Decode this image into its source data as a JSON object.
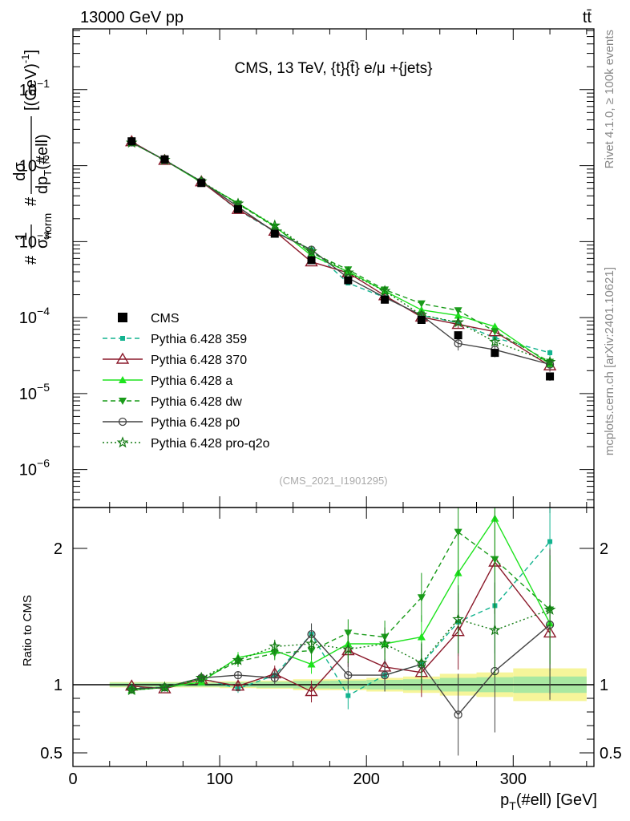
{
  "header": {
    "left_label": "13000 GeV pp",
    "right_label": "tt̄",
    "title": "CMS, 13 TeV, {t}{t̄} e/μ +{jets}",
    "analysis_id": "(CMS_2021_I1901295)",
    "side_label_top": "Rivet 4.1.0, ≥ 100k events",
    "side_label_bottom": "mcplots.cern.ch [arXiv:2401.10621]"
  },
  "axes": {
    "main_ylabel": "#1/σnorm #dσ/dpT(#ell) [(GeV)⁻¹]",
    "main_ylabel_parts": {
      "prefix": "#",
      "one": "1",
      "sigma": "σ",
      "norm": "norm",
      "hash2": "#",
      "dsigma": "dσ",
      "dpt_d": "d",
      "dpt_p": "p",
      "dpt_T": "T",
      "dpt_arg": "(#ell)",
      "unit_open": "[(GeV)",
      "unit_exp": "-1",
      "unit_close": "]"
    },
    "ratio_ylabel": "Ratio to CMS",
    "xlabel_main": "p",
    "xlabel_sub": "T",
    "xlabel_rest": "(#ell) [GeV]",
    "x_ticks": [
      "0",
      "100",
      "200",
      "300"
    ],
    "main_y_ticks": [
      {
        "base": "10",
        "exp": "−1"
      },
      {
        "base": "10",
        "exp": "−2"
      },
      {
        "base": "10",
        "exp": "−3"
      },
      {
        "base": "10",
        "exp": "−4"
      },
      {
        "base": "10",
        "exp": "−5"
      },
      {
        "base": "10",
        "exp": "−6"
      }
    ],
    "ratio_y_ticks": [
      "2",
      "1",
      "0.5"
    ]
  },
  "colors": {
    "CMS": "#000000",
    "p359": "#13b38f",
    "p370": "#8b1a2b",
    "pa": "#1ee31e",
    "pdw": "#1a9b1a",
    "pp0": "#444444",
    "pq2o": "#127a12",
    "band_outer": "#f6f59a",
    "band_inner": "#a9e8a1"
  },
  "chart_data": {
    "type": "line",
    "x_range": [
      0,
      355
    ],
    "main_y_range_log10": [
      -6.5,
      -0.2
    ],
    "ratio_y_range": [
      0.4,
      2.3
    ],
    "x": [
      40,
      62.5,
      87.5,
      112.5,
      137.5,
      162.5,
      187.5,
      212.5,
      237.5,
      262.5,
      287.5,
      325
    ],
    "x_err": [
      15,
      12.5,
      12.5,
      12.5,
      12.5,
      12.5,
      12.5,
      12.5,
      12.5,
      12.5,
      12.5,
      25
    ],
    "data": {
      "name": "CMS",
      "values": [
        0.0209,
        0.0121,
        0.0059,
        0.00268,
        0.00127,
        0.00057,
        0.00031,
        0.000172,
        9.32e-05,
        5.85e-05,
        3.43e-05,
        1.68e-05
      ],
      "rel_err": [
        0.02,
        0.02,
        0.02,
        0.025,
        0.03,
        0.04,
        0.04,
        0.05,
        0.06,
        0.08,
        0.09,
        0.12
      ]
    },
    "series": [
      {
        "name": "Pythia 6.428 359",
        "key": "p359",
        "marker": "square-small",
        "dash": "dashed",
        "ratio": [
          0.98,
          0.98,
          1.05,
          0.97,
          1.07,
          1.37,
          0.92,
          1.07,
          1.15,
          1.46,
          1.58,
          2.05
        ],
        "ratio_err": [
          0.01,
          0.01,
          0.02,
          0.03,
          0.05,
          0.07,
          0.1,
          0.12,
          0.15,
          0.25,
          0.35,
          0.4
        ]
      },
      {
        "name": "Pythia 6.428 370",
        "key": "p370",
        "marker": "triangle-open",
        "dash": "solid",
        "ratio": [
          0.99,
          0.97,
          1.04,
          0.99,
          1.08,
          0.95,
          1.25,
          1.13,
          1.09,
          1.39,
          1.9,
          1.38
        ],
        "ratio_err": [
          0.01,
          0.01,
          0.02,
          0.04,
          0.06,
          0.08,
          0.12,
          0.14,
          0.18,
          0.28,
          0.38,
          0.45
        ]
      },
      {
        "name": "Pythia 6.428 a",
        "key": "pa",
        "marker": "triangle-up",
        "dash": "solid",
        "ratio": [
          0.96,
          0.98,
          1.02,
          1.2,
          1.25,
          1.15,
          1.3,
          1.3,
          1.35,
          1.82,
          2.22,
          1.45
        ],
        "ratio_err": [
          0.01,
          0.01,
          0.02,
          0.04,
          0.06,
          0.07,
          0.1,
          0.12,
          0.16,
          0.3,
          0.4,
          0.45
        ]
      },
      {
        "name": "Pythia 6.428 dw",
        "key": "pdw",
        "marker": "triangle-down",
        "dash": "dashed",
        "ratio": [
          0.96,
          0.98,
          1.04,
          1.17,
          1.23,
          1.25,
          1.38,
          1.35,
          1.64,
          2.12,
          1.92,
          1.55
        ],
        "ratio_err": [
          0.01,
          0.01,
          0.02,
          0.04,
          0.05,
          0.07,
          0.1,
          0.12,
          0.18,
          0.32,
          0.4,
          0.45
        ]
      },
      {
        "name": "Pythia 6.428 p0",
        "key": "pp0",
        "marker": "circle-open",
        "dash": "solid",
        "ratio": [
          0.97,
          0.98,
          1.05,
          1.07,
          1.05,
          1.37,
          1.07,
          1.07,
          1.15,
          0.78,
          1.1,
          1.44
        ],
        "ratio_err": [
          0.01,
          0.01,
          0.02,
          0.03,
          0.05,
          0.08,
          0.1,
          0.12,
          0.15,
          0.3,
          0.45,
          0.55
        ]
      },
      {
        "name": "Pythia 6.428 pro-q2o",
        "key": "pq2o",
        "marker": "star-open",
        "dash": "dotted",
        "ratio": [
          0.96,
          0.98,
          1.05,
          1.18,
          1.28,
          1.3,
          1.26,
          1.3,
          1.16,
          1.48,
          1.4,
          1.55
        ],
        "ratio_err": [
          0.01,
          0.01,
          0.02,
          0.04,
          0.05,
          0.07,
          0.1,
          0.12,
          0.15,
          0.25,
          0.35,
          0.4
        ]
      }
    ],
    "data_band_rel_err": [
      0.02,
      0.02,
      0.02,
      0.025,
      0.03,
      0.04,
      0.04,
      0.05,
      0.06,
      0.08,
      0.09,
      0.12
    ],
    "data_band_rel_err_inner": [
      0.015,
      0.015,
      0.015,
      0.018,
      0.022,
      0.028,
      0.03,
      0.035,
      0.04,
      0.05,
      0.055,
      0.06
    ],
    "legend_position": "middle-left"
  }
}
